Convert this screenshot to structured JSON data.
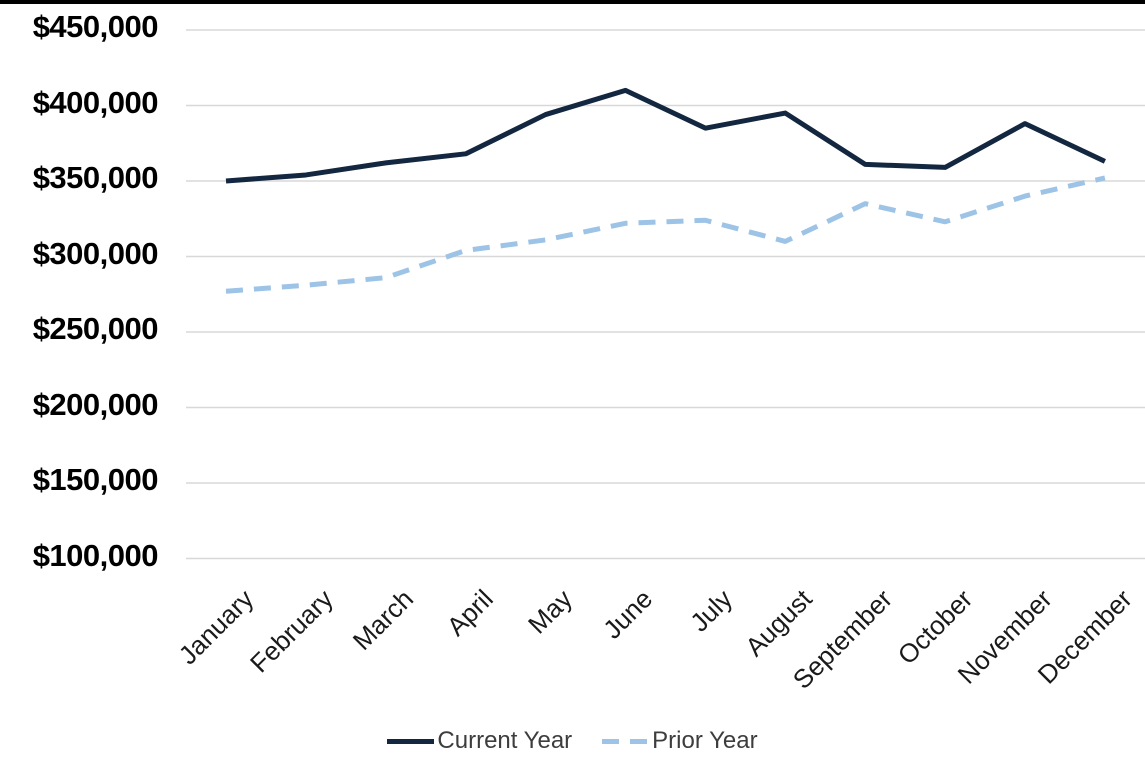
{
  "chart_data": {
    "type": "line",
    "title": "",
    "xlabel": "",
    "ylabel": "",
    "categories": [
      "January",
      "February",
      "March",
      "April",
      "May",
      "June",
      "July",
      "August",
      "September",
      "October",
      "November",
      "December"
    ],
    "series": [
      {
        "name": "Current Year",
        "color": "#142740",
        "line_style": "solid",
        "values": [
          350000,
          354000,
          362000,
          368000,
          394000,
          410000,
          385000,
          395000,
          361000,
          359000,
          388000,
          363000
        ]
      },
      {
        "name": "Prior Year",
        "color": "#9dc3e6",
        "line_style": "dashed",
        "values": [
          277000,
          281000,
          286000,
          304000,
          311000,
          322000,
          324000,
          310000,
          335000,
          323000,
          340000,
          352000
        ]
      }
    ],
    "y_axis": {
      "min": 100000,
      "max": 450000,
      "step": 50000,
      "tick_labels": [
        "$450,000",
        "$400,000",
        "$350,000",
        "$300,000",
        "$250,000",
        "$200,000",
        "$150,000",
        "$100,000"
      ],
      "tick_values": [
        450000,
        400000,
        350000,
        300000,
        250000,
        200000,
        150000,
        100000
      ]
    },
    "legend": {
      "position": "bottom",
      "entries": [
        "Current Year",
        "Prior Year"
      ]
    },
    "grid": true,
    "colors": {
      "gridline": "#d8d8d8",
      "background": "#ffffff",
      "y_label_text": "#000000",
      "x_label_text": "#1a1a1a",
      "legend_text": "#3d3d3d",
      "top_border": "#000000"
    }
  }
}
